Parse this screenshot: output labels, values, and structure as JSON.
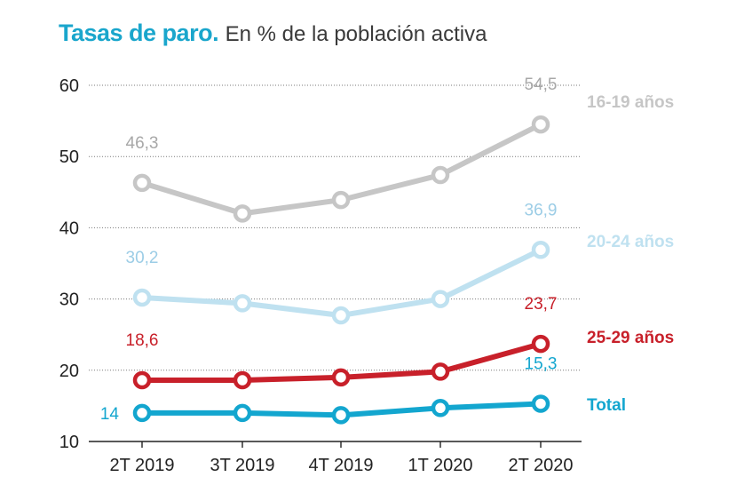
{
  "title": "Tasas de paro.",
  "subtitle": "En % de la población activa",
  "chart_data": {
    "type": "line",
    "categories": [
      "2T 2019",
      "3T 2019",
      "4T 2019",
      "1T 2020",
      "2T 2020"
    ],
    "yticks": [
      "60",
      "50",
      "40",
      "30",
      "20",
      "10"
    ],
    "ylim": [
      10,
      60
    ],
    "grid": true,
    "series": [
      {
        "name": "16-19 años",
        "color": "#c6c6c6",
        "values": [
          46.3,
          42.0,
          43.9,
          47.4,
          54.5
        ],
        "labels": [
          {
            "index": 0,
            "text": "46,3"
          },
          {
            "index": 4,
            "text": "54,5"
          }
        ]
      },
      {
        "name": "20-24 años",
        "color": "#bfe1f0",
        "values": [
          30.2,
          29.4,
          27.7,
          30.0,
          36.9
        ],
        "labels": [
          {
            "index": 0,
            "text": "30,2"
          },
          {
            "index": 4,
            "text": "36,9"
          }
        ]
      },
      {
        "name": "25-29 años",
        "color": "#c8202a",
        "values": [
          18.6,
          18.6,
          19.0,
          19.8,
          23.7
        ],
        "labels": [
          {
            "index": 0,
            "text": "18,6"
          },
          {
            "index": 4,
            "text": "23,7"
          }
        ]
      },
      {
        "name": "Total",
        "color": "#13a6cf",
        "values": [
          14.0,
          14.0,
          13.7,
          14.7,
          15.3
        ],
        "labels": [
          {
            "index": 0,
            "text": "14"
          },
          {
            "index": 4,
            "text": "15,3"
          }
        ]
      }
    ]
  }
}
